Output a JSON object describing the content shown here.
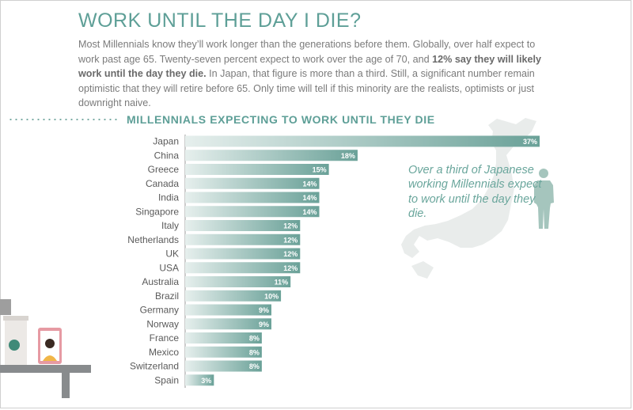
{
  "header": {
    "title": "WORK UNTIL THE DAY I DIE?",
    "intro_part1": "Most Millennials know they’ll work longer than the generations before them. Globally, over half expect to work past age 65. Twenty-seven percent expect to work over the age of 70, and ",
    "intro_bold": "12% say they will likely work until the day they die.",
    "intro_part2": " In Japan, that figure is more than a third. Still, a significant number remain optimistic that they will retire before 65. Only time will tell if this minority are the realists, optimists or just downright naive."
  },
  "annotation": "Over a third of Japanese working Millennials expect to work until the day they die.",
  "colors": {
    "accent": "#5e9f97",
    "bar_dark": "#6aa198",
    "bar_light": "#e6efed",
    "map": "#e9eceb",
    "person": "#a5c5bd"
  },
  "icons": [
    "japan-map-icon",
    "person-silhouette-icon",
    "coffee-cup-icon",
    "smartphone-icon",
    "desk-icon"
  ],
  "chart_data": {
    "type": "bar",
    "orientation": "horizontal",
    "title": "MILLENNIALS EXPECTING TO WORK UNTIL THEY DIE",
    "categories": [
      "Japan",
      "China",
      "Greece",
      "Canada",
      "India",
      "Singapore",
      "Italy",
      "Netherlands",
      "UK",
      "USA",
      "Australia",
      "Brazil",
      "Germany",
      "Norway",
      "France",
      "Mexico",
      "Switzerland",
      "Spain"
    ],
    "values": [
      37,
      18,
      15,
      14,
      14,
      14,
      12,
      12,
      12,
      12,
      11,
      10,
      9,
      9,
      8,
      8,
      8,
      3
    ],
    "value_labels": [
      "37%",
      "18%",
      "15%",
      "14%",
      "14%",
      "14%",
      "12%",
      "12%",
      "12%",
      "12%",
      "11%",
      "10%",
      "9%",
      "9%",
      "8%",
      "8%",
      "8%",
      "3%"
    ],
    "unit": "%",
    "xlim": [
      0,
      37
    ],
    "grid": false,
    "legend": "none"
  }
}
